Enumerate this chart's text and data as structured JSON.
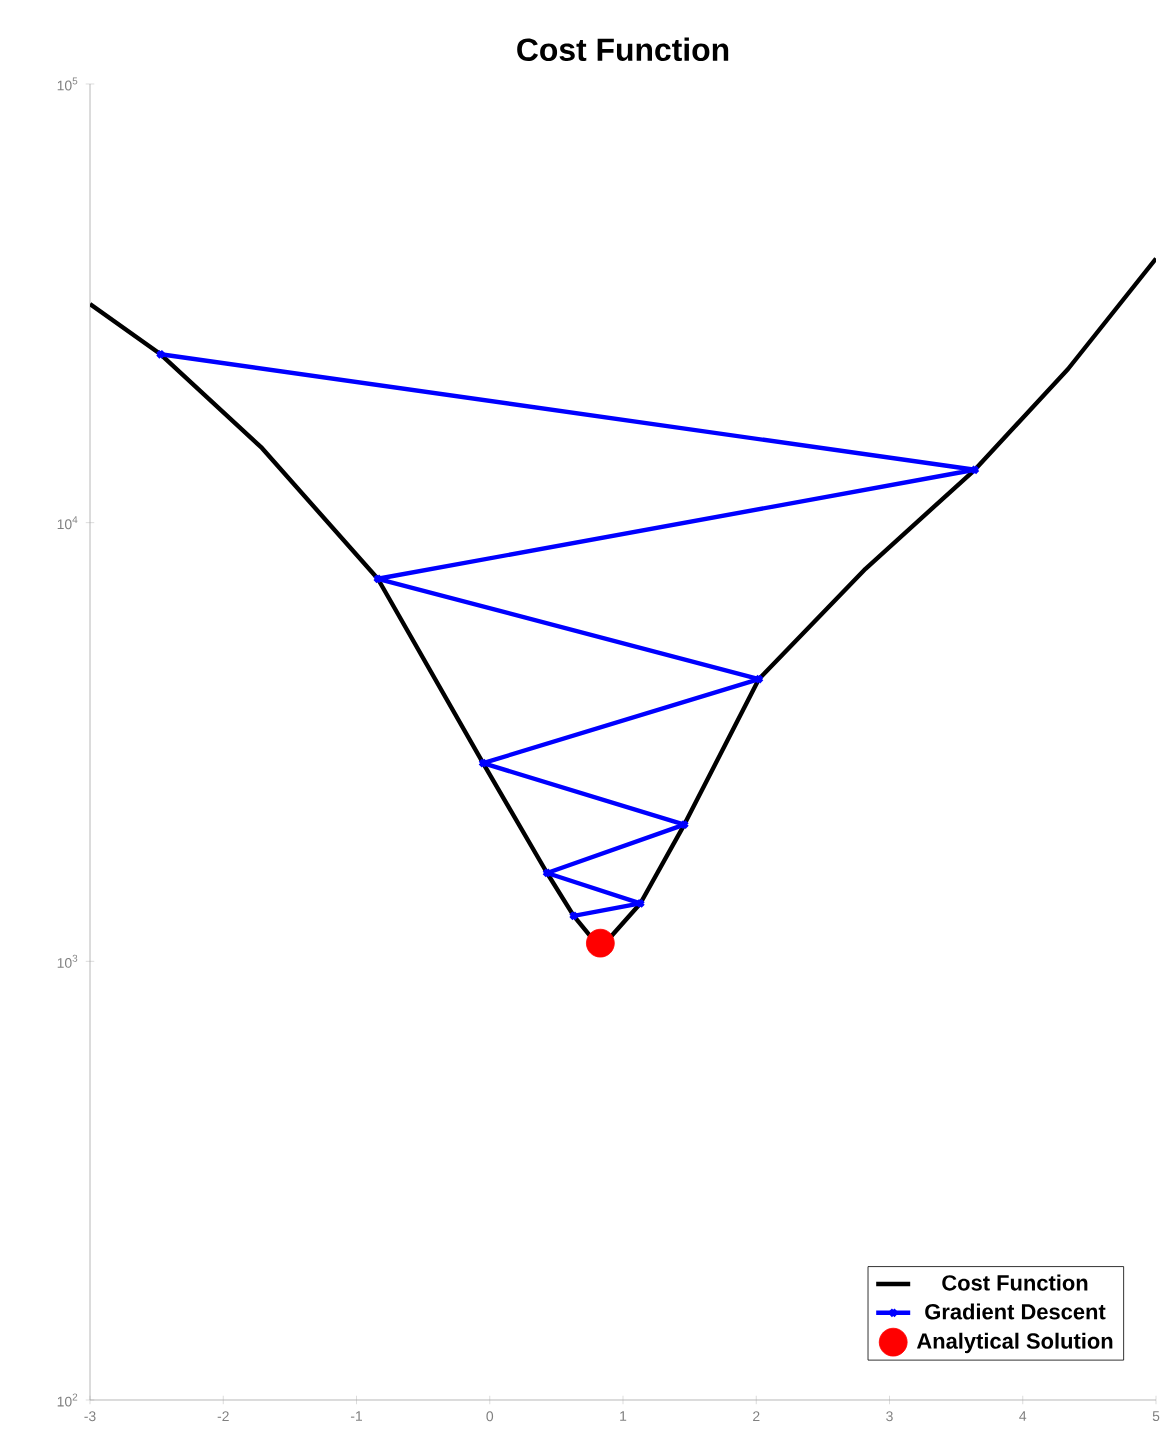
{
  "chart_data": {
    "type": "line",
    "title": "Cost Function",
    "log": "y",
    "xlim": [
      -3,
      5
    ],
    "ylim": [
      100,
      100000
    ],
    "xticks": [
      -3,
      -2,
      -1,
      0,
      1,
      2,
      3,
      4,
      5
    ],
    "yticks": [
      {
        "value": 100,
        "label": "10$^{2}$"
      },
      {
        "value": 1000,
        "label": "10$^{3}$"
      },
      {
        "value": 10000,
        "label": "10$^{4}$"
      },
      {
        "value": 100000,
        "label": "10$^{5}$"
      }
    ],
    "legend": "bottom right",
    "grid": false,
    "series": [
      {
        "name": "Cost Function",
        "color": "#000000",
        "marker": "none",
        "x": [
          -3,
          -2.47,
          -1.71,
          -0.84,
          -0.05,
          0.43,
          0.63,
          0.83,
          1.13,
          1.46,
          2.02,
          2.82,
          3.64,
          4.34,
          5
        ],
        "values": [
          31500,
          24200,
          14800,
          7450,
          2830,
          1590,
          1270,
          1070,
          1355,
          2050,
          4400,
          7850,
          13200,
          22400,
          40000
        ]
      },
      {
        "name": "Gradient Descent",
        "color": "#0000ff",
        "marker": "cross",
        "x": [
          -2.47,
          3.64,
          -0.84,
          2.02,
          -0.05,
          1.46,
          0.43,
          1.13,
          0.63
        ],
        "values": [
          24200,
          13200,
          7450,
          4400,
          2830,
          2050,
          1590,
          1355,
          1270
        ]
      },
      {
        "name": "Analytical Solution",
        "type": "scatter",
        "color": "#ff0000",
        "marker": "circle",
        "x": [
          0.83
        ],
        "values": [
          1100
        ]
      }
    ]
  }
}
